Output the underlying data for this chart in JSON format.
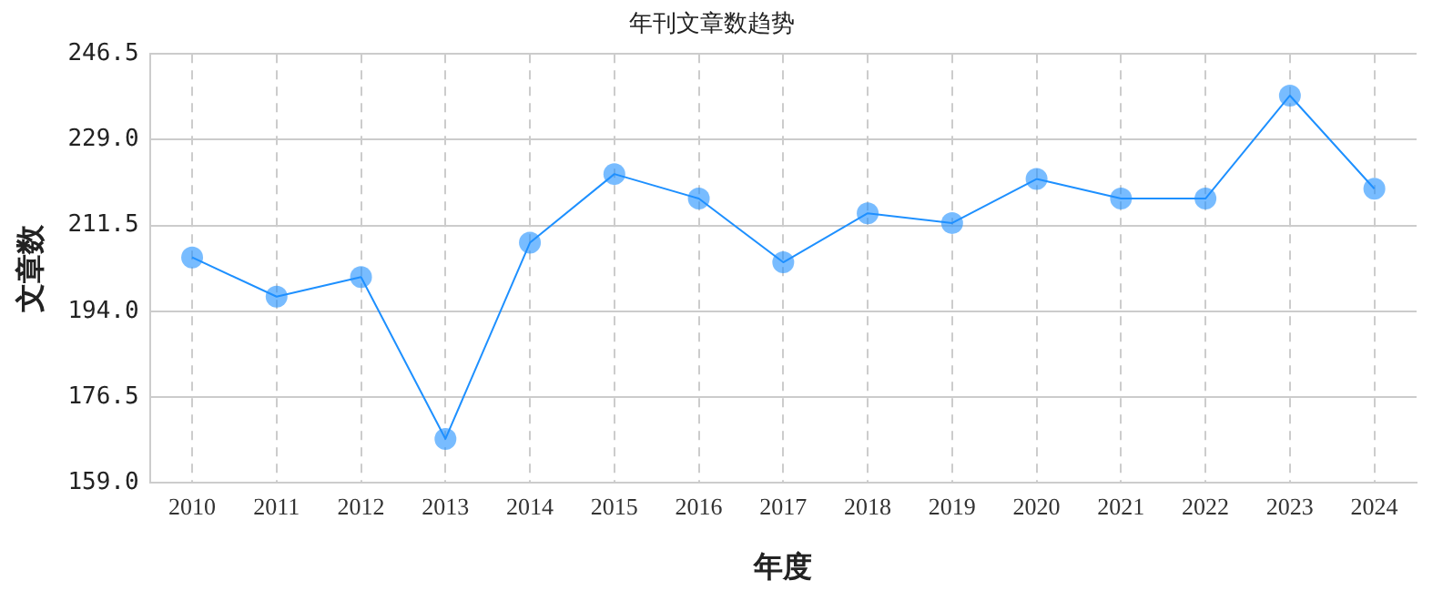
{
  "chart_data": {
    "type": "line",
    "title": "年刊文章数趋势",
    "xlabel": "年度",
    "ylabel": "文章数",
    "categories": [
      "2010",
      "2011",
      "2012",
      "2013",
      "2014",
      "2015",
      "2016",
      "2017",
      "2018",
      "2019",
      "2020",
      "2021",
      "2022",
      "2023",
      "2024"
    ],
    "series": [
      {
        "color": "#1e90ff",
        "values": [
          205,
          197,
          201,
          168,
          208,
          222,
          217,
          204,
          214,
          212,
          221,
          217,
          217,
          238,
          219
        ]
      }
    ],
    "ylim": [
      159,
      246.5
    ],
    "yticks": [
      {
        "value": 159,
        "label": "159.0"
      },
      {
        "value": 176.5,
        "label": "176.5"
      },
      {
        "value": 194,
        "label": "194.0"
      },
      {
        "value": 211.5,
        "label": "211.5"
      },
      {
        "value": 229,
        "label": "229.0"
      },
      {
        "value": 246.5,
        "label": "246.5"
      }
    ],
    "grid": true,
    "legend": false,
    "marker": "circle",
    "line_style": "solid"
  }
}
